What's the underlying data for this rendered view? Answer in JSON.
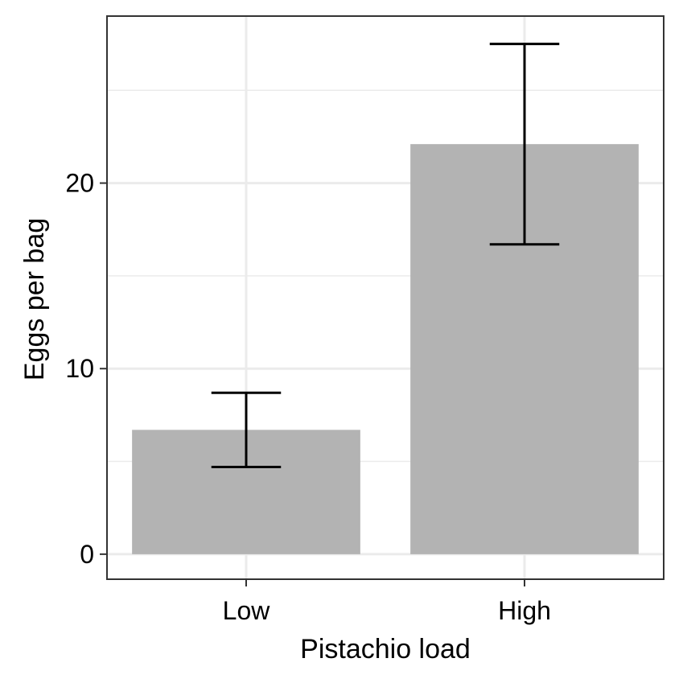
{
  "chart_data": {
    "type": "bar",
    "title": "",
    "xlabel": "Pistachio load",
    "ylabel": "Eggs per bag",
    "categories": [
      "Low",
      "High"
    ],
    "values": [
      6.7,
      22.1
    ],
    "error_low": [
      4.7,
      16.7
    ],
    "error_high": [
      8.7,
      27.5
    ],
    "ylim": [
      -1.35,
      29
    ],
    "yticks": [
      0,
      10,
      20
    ],
    "ytick_labels": [
      "0",
      "10",
      "20"
    ],
    "y_minor_gridlines": [
      5,
      15,
      25
    ],
    "grid": true,
    "legend": "none",
    "colors": {
      "bar": "#b3b3b3",
      "grid": "#ebebeb",
      "panel_border": "#333333",
      "error_bar": "#000000",
      "background": "#ffffff"
    }
  }
}
